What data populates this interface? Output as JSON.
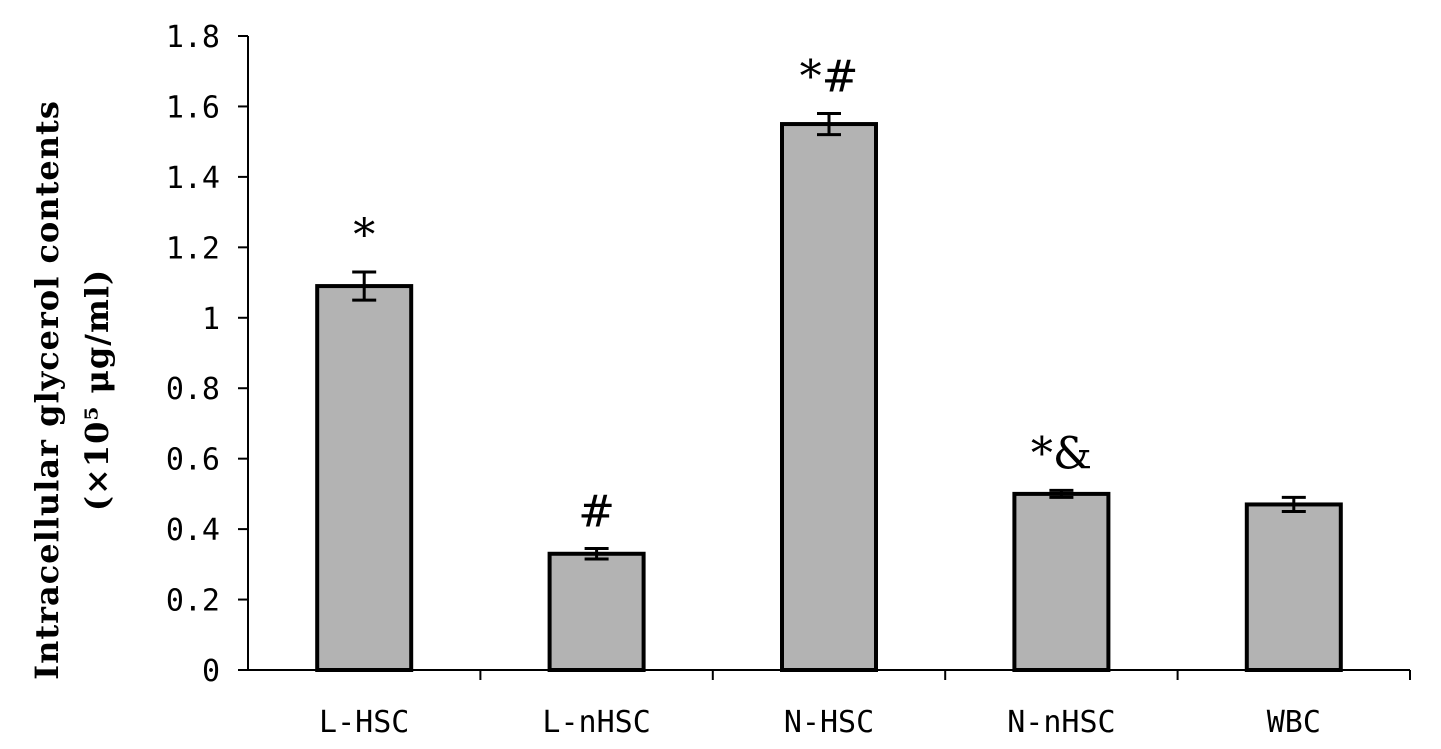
{
  "chart_data": {
    "type": "bar",
    "categories": [
      "L-HSC",
      "L-nHSC",
      "N-HSC",
      "N-nHSC",
      "WBC"
    ],
    "series": [
      {
        "values": [
          1.09,
          0.33,
          1.55,
          0.5,
          0.47
        ],
        "errors": [
          0.04,
          0.015,
          0.03,
          0.01,
          0.02
        ]
      }
    ],
    "annotations": [
      "*",
      "#",
      "*#",
      "*&",
      ""
    ],
    "ylabel_line1": "Intracellular glycerol contents",
    "ylabel_line2": "(×10⁵ μg/ml)",
    "yticks": [
      "0",
      "0.2",
      "0.4",
      "0.6",
      "0.8",
      "1",
      "1.2",
      "1.4",
      "1.6",
      "1.8"
    ],
    "ylim": [
      0,
      1.8
    ],
    "grid": false,
    "legend": "none",
    "colors": {
      "bar_fill": "#b3b3b3",
      "bar_stroke": "#000000"
    }
  }
}
